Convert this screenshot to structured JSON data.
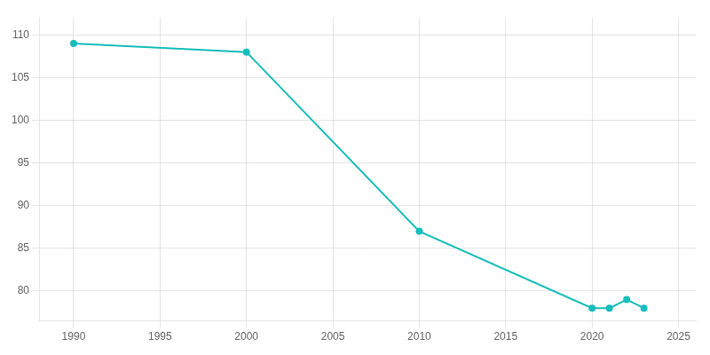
{
  "chart_data": {
    "type": "line",
    "x": [
      1990,
      2000,
      2010,
      2020,
      2021,
      2022,
      2023
    ],
    "values": [
      109,
      108,
      87,
      78,
      78,
      79,
      78
    ],
    "color": "#17bebb",
    "marker": "circle",
    "xlim": [
      1988,
      2026
    ],
    "ylim": [
      76.5,
      112
    ],
    "xticks": [
      1990,
      1995,
      2000,
      2005,
      2010,
      2015,
      2020,
      2025
    ],
    "yticks": [
      80,
      85,
      90,
      95,
      100,
      105,
      110
    ],
    "grid": true
  }
}
